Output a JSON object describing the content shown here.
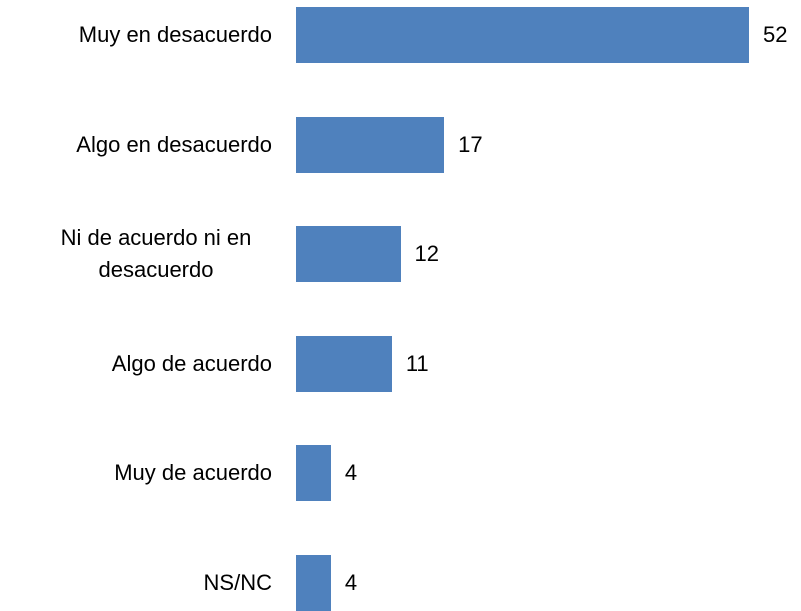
{
  "chart_data": {
    "type": "bar",
    "orientation": "horizontal",
    "categories": [
      "Muy en desacuerdo",
      "Algo en desacuerdo",
      "Ni de acuerdo ni en desacuerdo",
      "Algo de acuerdo",
      "Muy de acuerdo",
      "NS/NC"
    ],
    "values": [
      52,
      17,
      12,
      11,
      4,
      4
    ],
    "color": "#4f81bd"
  }
}
